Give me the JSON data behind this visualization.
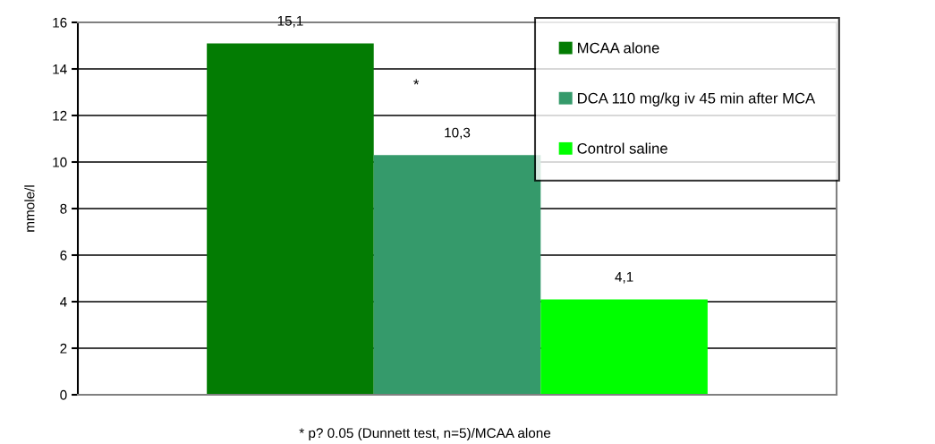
{
  "chart_data": {
    "type": "bar",
    "ylabel": "mmole/l",
    "categories": [
      null
    ],
    "series": [
      {
        "name": "MCAA alone",
        "color": "#037c03",
        "values": [
          15.1
        ],
        "value_labels": [
          "15,1"
        ]
      },
      {
        "name": "DCA 110 mg/kg iv 45 min after MCA",
        "color": "#359a6b",
        "values": [
          10.3
        ],
        "value_labels": [
          "10,3"
        ]
      },
      {
        "name": "Control saline",
        "color": "#00ff00",
        "values": [
          4.1
        ],
        "value_labels": [
          "4,1"
        ]
      }
    ],
    "ylim": [
      0,
      16
    ],
    "yticks": [
      0,
      2,
      4,
      6,
      8,
      10,
      12,
      14,
      16
    ],
    "grid": "y",
    "legend": "top right",
    "annotations": [
      "*",
      "* p? 0.05 (Dunnett test, n=5)/MCAA alone"
    ]
  }
}
